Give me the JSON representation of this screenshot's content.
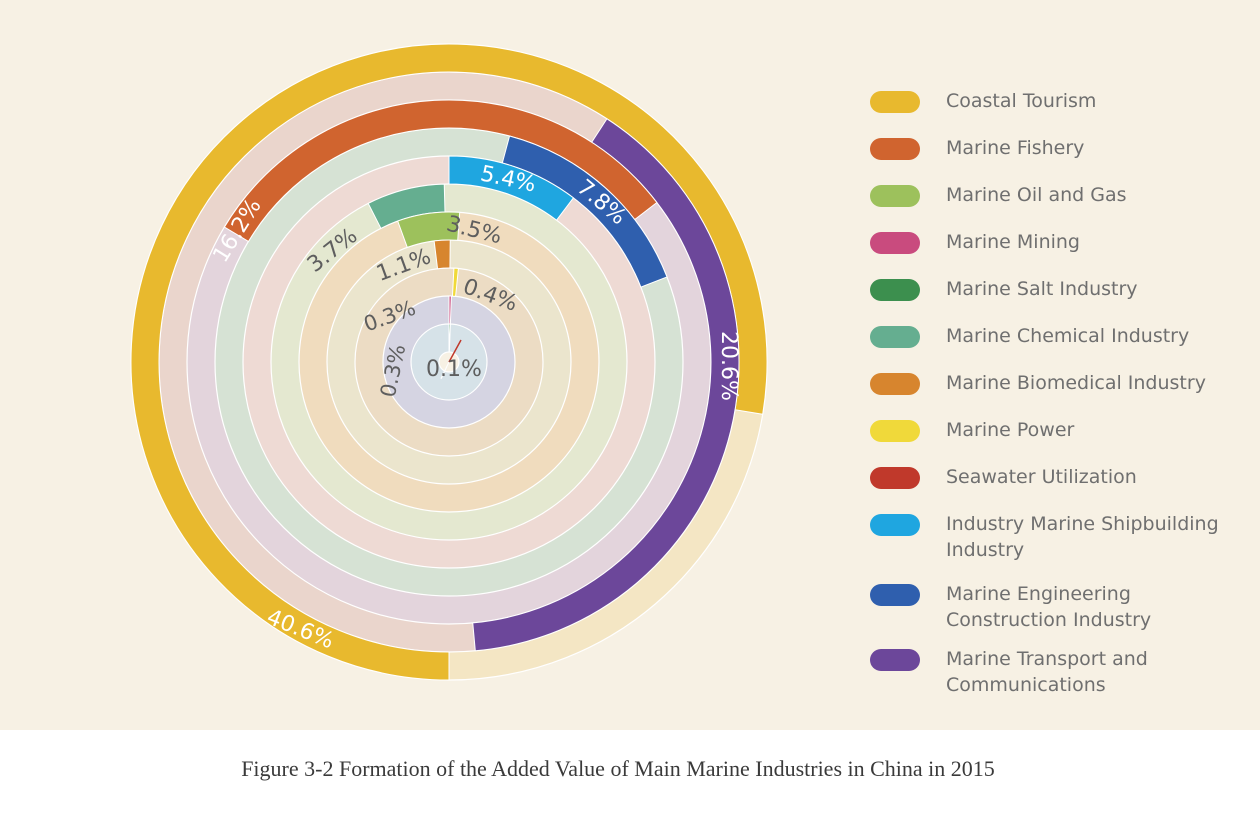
{
  "chart_data": {
    "type": "radial-bar",
    "title": "",
    "caption": "Figure 3-2 Formation of the Added Value of Main Marine Industries in China in 2015",
    "unit": "%",
    "legend_position": "right",
    "series": [
      {
        "name": "Coastal Tourism",
        "value": 40.6,
        "label": "40.6%",
        "color": "#e8b92e",
        "track": "#f4e6c4"
      },
      {
        "name": "Marine Fishery",
        "value": 16.2,
        "label": "16.2%",
        "color": "#d0642f",
        "track": "#e3d4dc"
      },
      {
        "name": "Marine Oil and Gas",
        "value": 3.5,
        "label": "3.5%",
        "color": "#9dc15c",
        "track": "#f0dcbe"
      },
      {
        "name": "Marine Mining",
        "value": 0.3,
        "label": "0.3%",
        "color": "#c94b7e",
        "track": "#d5d4e2"
      },
      {
        "name": "Marine Salt Industry",
        "value": 0.3,
        "label": "0.3%",
        "color": "#3c8f4e",
        "track": "#d6e2e8"
      },
      {
        "name": "Marine Chemical Industry",
        "value": 3.7,
        "label": "3.7%",
        "color": "#65ae90",
        "track": "#e4e8d0"
      },
      {
        "name": "Marine Biomedical Industry",
        "value": 1.1,
        "label": "1.1%",
        "color": "#d7852e",
        "track": "#ebe5cd"
      },
      {
        "name": "Marine Power",
        "value": 0.4,
        "label": "0.4%",
        "color": "#f0d93a",
        "track": "#ecdcc4"
      },
      {
        "name": "Seawater Utilization",
        "value": 0.1,
        "label": "0.1%",
        "color": "#c0392b",
        "track": "#f6edc6"
      },
      {
        "name": "Industry Marine Shipbuilding Industry",
        "value": 5.4,
        "label": "5.4%",
        "color": "#1fa6e0",
        "track": "#eedad4"
      },
      {
        "name": "Marine Engineering Construction Industry",
        "value": 7.8,
        "label": "7.8%",
        "color": "#2f5fae",
        "track": "#d6e2d4"
      },
      {
        "name": "Marine Transport and Communications",
        "value": 20.6,
        "label": "20.6%",
        "color": "#6c479a",
        "track": "#ead5cc"
      }
    ]
  }
}
